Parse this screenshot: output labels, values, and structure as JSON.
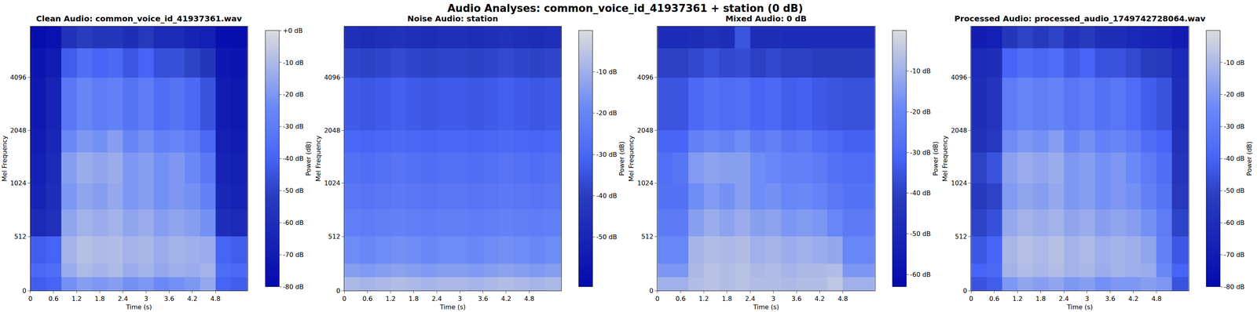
{
  "title": "Audio Analyses: common_voice_id_41937361 + station (0 dB)",
  "chart_data": [
    {
      "type": "heatmap",
      "title": "Clean Audio: common_voice_id_41937361.wav",
      "x_label": "Time (s)",
      "y_label": "Mel Frequency",
      "color": "Plasma",
      "x": [
        0,
        0.4,
        0.8,
        1.2,
        1.6,
        2.0,
        2.4,
        2.8,
        3.2,
        3.6,
        4.0,
        4.4,
        4.8,
        5.2,
        5.63
      ],
      "y": [
        0,
        128,
        256,
        512,
        768,
        1024,
        1536,
        2048,
        4096,
        6000,
        8000
      ],
      "z": [
        [
          -42,
          -40,
          -22,
          -18,
          -20,
          -18,
          -22,
          -20,
          -24,
          -22,
          -20,
          -15,
          -40,
          -42
        ],
        [
          -38,
          -36,
          -14,
          -10,
          -12,
          -10,
          -14,
          -12,
          -15,
          -13,
          -14,
          -12,
          -37,
          -38
        ],
        [
          -42,
          -40,
          -12,
          -8,
          -10,
          -9,
          -12,
          -11,
          -14,
          -12,
          -13,
          -14,
          -40,
          -42
        ],
        [
          -62,
          -58,
          -16,
          -12,
          -14,
          -12,
          -16,
          -14,
          -18,
          -16,
          -18,
          -22,
          -60,
          -62
        ],
        [
          -66,
          -60,
          -20,
          -16,
          -18,
          -15,
          -20,
          -18,
          -22,
          -20,
          -22,
          -28,
          -64,
          -66
        ],
        [
          -68,
          -62,
          -18,
          -14,
          -16,
          -14,
          -20,
          -18,
          -22,
          -20,
          -24,
          -32,
          -66,
          -68
        ],
        [
          -70,
          -64,
          -24,
          -20,
          -22,
          -18,
          -26,
          -22,
          -28,
          -26,
          -30,
          -38,
          -68,
          -70
        ],
        [
          -72,
          -66,
          -32,
          -26,
          -30,
          -28,
          -34,
          -30,
          -36,
          -34,
          -38,
          -45,
          -70,
          -72
        ],
        [
          -74,
          -70,
          -42,
          -36,
          -40,
          -38,
          -44,
          -40,
          -46,
          -46,
          -50,
          -55,
          -73,
          -74
        ],
        [
          -78,
          -76,
          -58,
          -52,
          -56,
          -55,
          -60,
          -54,
          -62,
          -62,
          -66,
          -68,
          -77,
          -78
        ]
      ],
      "xlim": [
        0,
        5.63
      ],
      "ylim": [
        0,
        8000
      ],
      "xticks": [
        0,
        0.6,
        1.2,
        1.8,
        2.4,
        3,
        3.6,
        4.2,
        4.8
      ],
      "yticks": [
        0,
        512,
        1024,
        2048,
        4096
      ],
      "colorbar": {
        "label": "Power (dB)",
        "range": [
          -80,
          0
        ],
        "ticks": [
          {
            "value": 0,
            "label": "+0 dB"
          },
          {
            "value": -10,
            "label": "-10 dB"
          },
          {
            "value": -20,
            "label": "-20 dB"
          },
          {
            "value": -30,
            "label": "-30 dB"
          },
          {
            "value": -40,
            "label": "-40 dB"
          },
          {
            "value": -50,
            "label": "-50 dB"
          },
          {
            "value": -60,
            "label": "-60 dB"
          },
          {
            "value": -70,
            "label": "-70 dB"
          },
          {
            "value": -80,
            "label": "-80 dB"
          }
        ]
      }
    },
    {
      "type": "heatmap",
      "title": "Noise Audio: station",
      "x_label": "Time (s)",
      "y_label": "Mel Frequency",
      "color": "Plasma",
      "x": [
        0,
        0.4,
        0.8,
        1.2,
        1.6,
        2.0,
        2.4,
        2.8,
        3.2,
        3.6,
        4.0,
        4.4,
        4.8,
        5.2,
        5.63
      ],
      "y": [
        0,
        128,
        256,
        512,
        768,
        1024,
        1536,
        2048,
        4096,
        6000,
        8000
      ],
      "z": [
        [
          -8,
          -9,
          -8,
          -7,
          -8,
          -9,
          -8,
          -8,
          -9,
          -8,
          -7,
          -8,
          -9,
          -8
        ],
        [
          -14,
          -15,
          -14,
          -13,
          -14,
          -15,
          -14,
          -14,
          -15,
          -14,
          -13,
          -14,
          -15,
          -14
        ],
        [
          -18,
          -19,
          -18,
          -17,
          -18,
          -19,
          -18,
          -18,
          -19,
          -18,
          -17,
          -18,
          -19,
          -18
        ],
        [
          -22,
          -23,
          -22,
          -21,
          -22,
          -23,
          -22,
          -22,
          -23,
          -22,
          -21,
          -22,
          -23,
          -22
        ],
        [
          -25,
          -26,
          -25,
          -24,
          -25,
          -26,
          -25,
          -25,
          -26,
          -25,
          -24,
          -25,
          -26,
          -25
        ],
        [
          -27,
          -28,
          -27,
          -26,
          -27,
          -28,
          -27,
          -27,
          -28,
          -27,
          -26,
          -27,
          -28,
          -27
        ],
        [
          -30,
          -31,
          -30,
          -29,
          -30,
          -31,
          -30,
          -30,
          -31,
          -30,
          -29,
          -30,
          -31,
          -30
        ],
        [
          -33,
          -34,
          -33,
          -32,
          -33,
          -34,
          -33,
          -33,
          -34,
          -33,
          -32,
          -33,
          -34,
          -33
        ],
        [
          -38,
          -39,
          -38,
          -37,
          -38,
          -39,
          -38,
          -38,
          -39,
          -38,
          -37,
          -38,
          -39,
          -38
        ],
        [
          -46,
          -47,
          -46,
          -45,
          -46,
          -47,
          -46,
          -46,
          -47,
          -46,
          -45,
          -46,
          -47,
          -46
        ]
      ],
      "xlim": [
        0,
        5.63
      ],
      "ylim": [
        0,
        8000
      ],
      "xticks": [
        0,
        0.6,
        1.2,
        1.8,
        2.4,
        3,
        3.6,
        4.2,
        4.8
      ],
      "yticks": [
        0,
        512,
        1024,
        2048,
        4096
      ],
      "colorbar": {
        "label": "Power (dB)",
        "range": [
          -62,
          0
        ],
        "ticks": [
          {
            "value": -10,
            "label": "-10 dB"
          },
          {
            "value": -20,
            "label": "-20 dB"
          },
          {
            "value": -30,
            "label": "-30 dB"
          },
          {
            "value": -40,
            "label": "-40 dB"
          },
          {
            "value": -50,
            "label": "-50 dB"
          }
        ]
      }
    },
    {
      "type": "heatmap",
      "title": "Mixed Audio: 0 dB",
      "x_label": "Time (s)",
      "y_label": "Mel Frequency",
      "color": "Plasma",
      "x": [
        0,
        0.4,
        0.8,
        1.2,
        1.6,
        2.0,
        2.4,
        2.8,
        3.2,
        3.6,
        4.0,
        4.4,
        4.8,
        5.2,
        5.63
      ],
      "y": [
        0,
        128,
        256,
        512,
        768,
        1024,
        1536,
        2048,
        4096,
        6000,
        8000
      ],
      "z": [
        [
          -10,
          -10,
          -7,
          -6,
          -7,
          -6,
          -7,
          -7,
          -8,
          -7,
          -7,
          -5,
          -10,
          -10
        ],
        [
          -16,
          -16,
          -8,
          -6,
          -7,
          -6,
          -8,
          -7,
          -9,
          -8,
          -8,
          -7,
          -16,
          -16
        ],
        [
          -20,
          -20,
          -9,
          -7,
          -8,
          -7,
          -10,
          -9,
          -11,
          -10,
          -11,
          -12,
          -20,
          -20
        ],
        [
          -24,
          -24,
          -14,
          -11,
          -13,
          -11,
          -14,
          -13,
          -16,
          -15,
          -16,
          -20,
          -24,
          -24
        ],
        [
          -27,
          -27,
          -18,
          -15,
          -17,
          -14,
          -18,
          -17,
          -20,
          -19,
          -21,
          -25,
          -27,
          -27
        ],
        [
          -28,
          -26,
          -15,
          -13,
          -14,
          -14,
          -18,
          -20,
          -22,
          -22,
          -24,
          -27,
          -29,
          -29
        ],
        [
          -31,
          -31,
          -22,
          -19,
          -21,
          -18,
          -24,
          -22,
          -26,
          -25,
          -28,
          -30,
          -32,
          -32
        ],
        [
          -35,
          -35,
          -30,
          -27,
          -29,
          -28,
          -31,
          -30,
          -33,
          -32,
          -34,
          -35,
          -36,
          -36
        ],
        [
          -40,
          -40,
          -38,
          -36,
          -38,
          -37,
          -40,
          -38,
          -40,
          -40,
          -41,
          -41,
          -41,
          -41
        ],
        [
          -48,
          -48,
          -47,
          -46,
          -47,
          -35,
          -47,
          -47,
          -48,
          -48,
          -48,
          -48,
          -48,
          -48
        ]
      ],
      "xlim": [
        0,
        5.63
      ],
      "ylim": [
        0,
        8000
      ],
      "xticks": [
        0,
        0.6,
        1.2,
        1.8,
        2.4,
        3,
        3.6,
        4.2,
        4.8
      ],
      "yticks": [
        0,
        512,
        1024,
        2048,
        4096
      ],
      "colorbar": {
        "label": "Power (dB)",
        "range": [
          -63,
          0
        ],
        "ticks": [
          {
            "value": -10,
            "label": "-10 dB"
          },
          {
            "value": -20,
            "label": "-20 dB"
          },
          {
            "value": -30,
            "label": "-30 dB"
          },
          {
            "value": -40,
            "label": "-40 dB"
          },
          {
            "value": -50,
            "label": "-50 dB"
          },
          {
            "value": -60,
            "label": "-60 dB"
          }
        ]
      }
    },
    {
      "type": "heatmap",
      "title": "Processed Audio: processed_audio_1749742728064.wav",
      "x_label": "Time (s)",
      "y_label": "Mel Frequency",
      "color": "Plasma",
      "x": [
        0,
        0.4,
        0.8,
        1.2,
        1.6,
        2.0,
        2.4,
        2.8,
        3.2,
        3.6,
        4.0,
        4.4,
        4.8,
        5.2,
        5.63
      ],
      "y": [
        0,
        128,
        256,
        512,
        768,
        1024,
        1536,
        2048,
        4096,
        6000,
        8000
      ],
      "z": [
        [
          -45,
          -42,
          -20,
          -16,
          -18,
          -16,
          -20,
          -18,
          -22,
          -20,
          -20,
          -18,
          -20,
          -45
        ],
        [
          -40,
          -38,
          -12,
          -9,
          -11,
          -9,
          -12,
          -11,
          -14,
          -12,
          -13,
          -14,
          -25,
          -40
        ],
        [
          -44,
          -40,
          -11,
          -8,
          -10,
          -8,
          -12,
          -10,
          -13,
          -12,
          -13,
          -16,
          -28,
          -44
        ],
        [
          -50,
          -46,
          -15,
          -12,
          -14,
          -12,
          -16,
          -14,
          -18,
          -16,
          -18,
          -22,
          -30,
          -50
        ],
        [
          -54,
          -50,
          -19,
          -16,
          -18,
          -15,
          -20,
          -18,
          -22,
          -20,
          -22,
          -28,
          -34,
          -54
        ],
        [
          -50,
          -45,
          -17,
          -14,
          -16,
          -14,
          -20,
          -18,
          -22,
          -20,
          -24,
          -30,
          -36,
          -56
        ],
        [
          -58,
          -54,
          -23,
          -20,
          -22,
          -18,
          -26,
          -22,
          -28,
          -26,
          -30,
          -36,
          -40,
          -58
        ],
        [
          -60,
          -56,
          -30,
          -26,
          -29,
          -27,
          -33,
          -30,
          -35,
          -33,
          -37,
          -42,
          -45,
          -60
        ],
        [
          -62,
          -60,
          -40,
          -36,
          -39,
          -37,
          -43,
          -40,
          -45,
          -45,
          -48,
          -52,
          -54,
          -62
        ],
        [
          -70,
          -68,
          -55,
          -50,
          -54,
          -50,
          -58,
          -53,
          -60,
          -60,
          -63,
          -65,
          -66,
          -70
        ]
      ],
      "xlim": [
        0,
        5.63
      ],
      "ylim": [
        0,
        8000
      ],
      "xticks": [
        0,
        0.6,
        1.2,
        1.8,
        2.4,
        3,
        3.6,
        4.2,
        4.8
      ],
      "yticks": [
        0,
        512,
        1024,
        2048,
        4096
      ],
      "colorbar": {
        "label": "Power (dB)",
        "range": [
          -80,
          0
        ],
        "ticks": [
          {
            "value": -10,
            "label": "-10 dB"
          },
          {
            "value": -20,
            "label": "-20 dB"
          },
          {
            "value": -30,
            "label": "-30 dB"
          },
          {
            "value": -40,
            "label": "-40 dB"
          },
          {
            "value": -50,
            "label": "-50 dB"
          },
          {
            "value": -60,
            "label": "-60 dB"
          },
          {
            "value": -70,
            "label": "-70 dB"
          },
          {
            "value": -80,
            "label": "-80 dB"
          }
        ]
      }
    }
  ]
}
